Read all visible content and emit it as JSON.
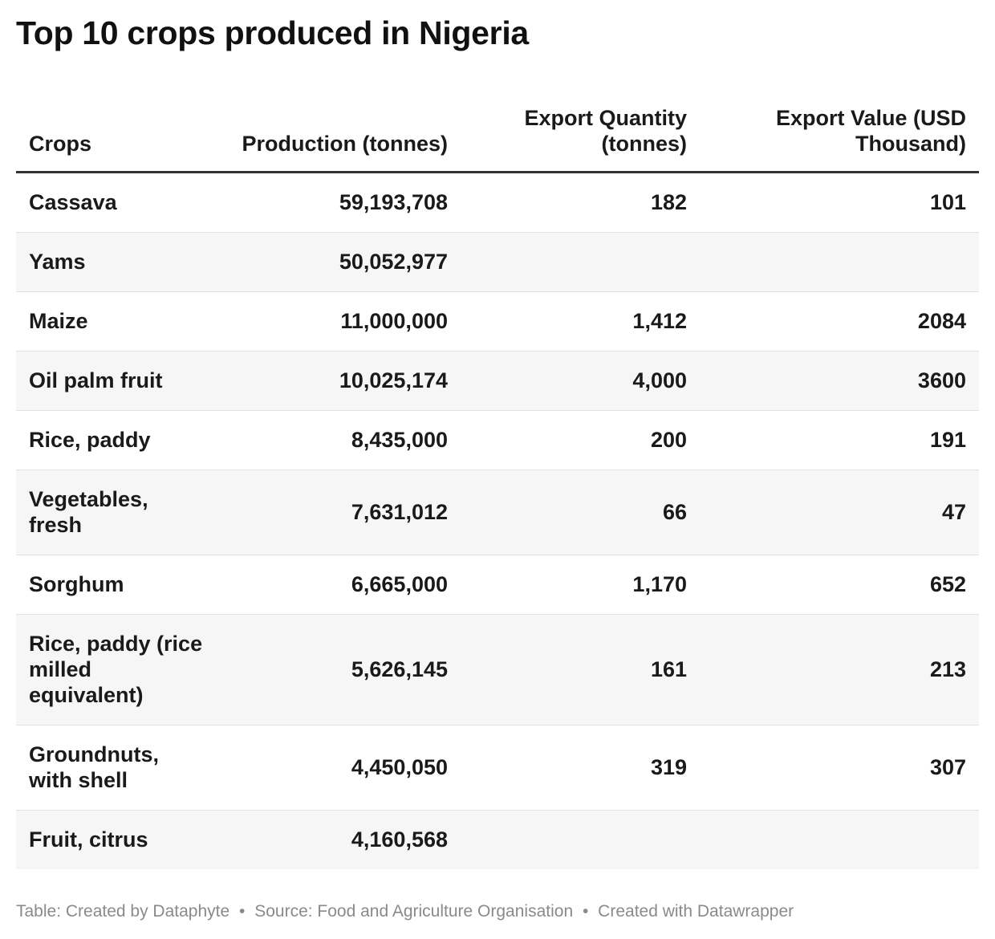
{
  "title": "Top 10 crops produced in Nigeria",
  "chart_data": {
    "type": "table",
    "title": "Top 10 crops produced in Nigeria",
    "columns": [
      "Crops",
      "Production (tonnes)",
      "Export Quantity (tonnes)",
      "Export Value (USD Thousand)"
    ],
    "rows": [
      {
        "crop": "Cassava",
        "production": "59,193,708",
        "export_quantity": "182",
        "export_value": "101"
      },
      {
        "crop": "Yams",
        "production": "50,052,977",
        "export_quantity": "",
        "export_value": ""
      },
      {
        "crop": "Maize",
        "production": "11,000,000",
        "export_quantity": "1,412",
        "export_value": "2084"
      },
      {
        "crop": "Oil palm fruit",
        "production": "10,025,174",
        "export_quantity": "4,000",
        "export_value": "3600"
      },
      {
        "crop": "Rice, paddy",
        "production": "8,435,000",
        "export_quantity": "200",
        "export_value": "191"
      },
      {
        "crop": "Vegetables, fresh",
        "production": "7,631,012",
        "export_quantity": "66",
        "export_value": "47"
      },
      {
        "crop": "Sorghum",
        "production": "6,665,000",
        "export_quantity": "1,170",
        "export_value": "652"
      },
      {
        "crop": "Rice, paddy (rice milled equivalent)",
        "production": "5,626,145",
        "export_quantity": "161",
        "export_value": "213"
      },
      {
        "crop": "Groundnuts, with shell",
        "production": "4,450,050",
        "export_quantity": "319",
        "export_value": "307"
      },
      {
        "crop": "Fruit, citrus",
        "production": "4,160,568",
        "export_quantity": "",
        "export_value": ""
      }
    ]
  },
  "footer": {
    "table_credit": "Table: Created by Dataphyte",
    "source": "Source: Food and Agriculture Organisation",
    "created_with": "Created with Datawrapper",
    "separator": "•"
  }
}
